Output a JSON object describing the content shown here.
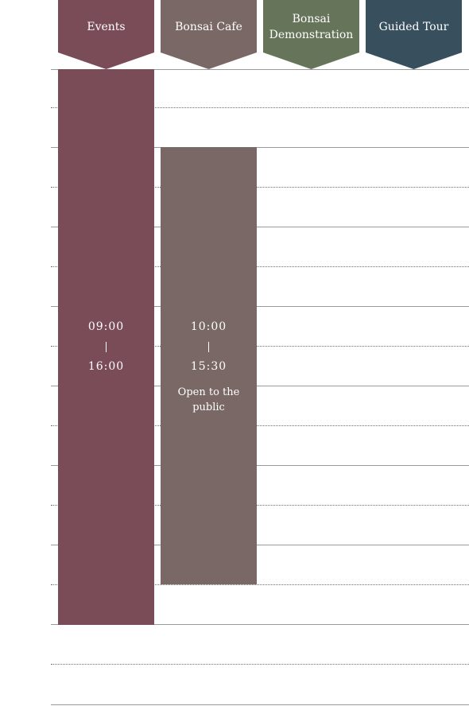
{
  "columns": [
    {
      "label": "Events",
      "color": "#7a4c58"
    },
    {
      "label": "Bonsai Cafe",
      "color": "#7a6866"
    },
    {
      "label": "Bonsai Demonstration",
      "color": "#66745a"
    },
    {
      "label": "Guided Tour",
      "color": "#384f5e"
    }
  ],
  "events": [
    {
      "column": "Events",
      "start": "09:00",
      "end": "16:00",
      "note": "",
      "color": "#7a4c58"
    },
    {
      "column": "Bonsai Cafe",
      "start": "10:00",
      "end": "15:30",
      "note": "Open to the public",
      "color": "#7a6866"
    }
  ]
}
